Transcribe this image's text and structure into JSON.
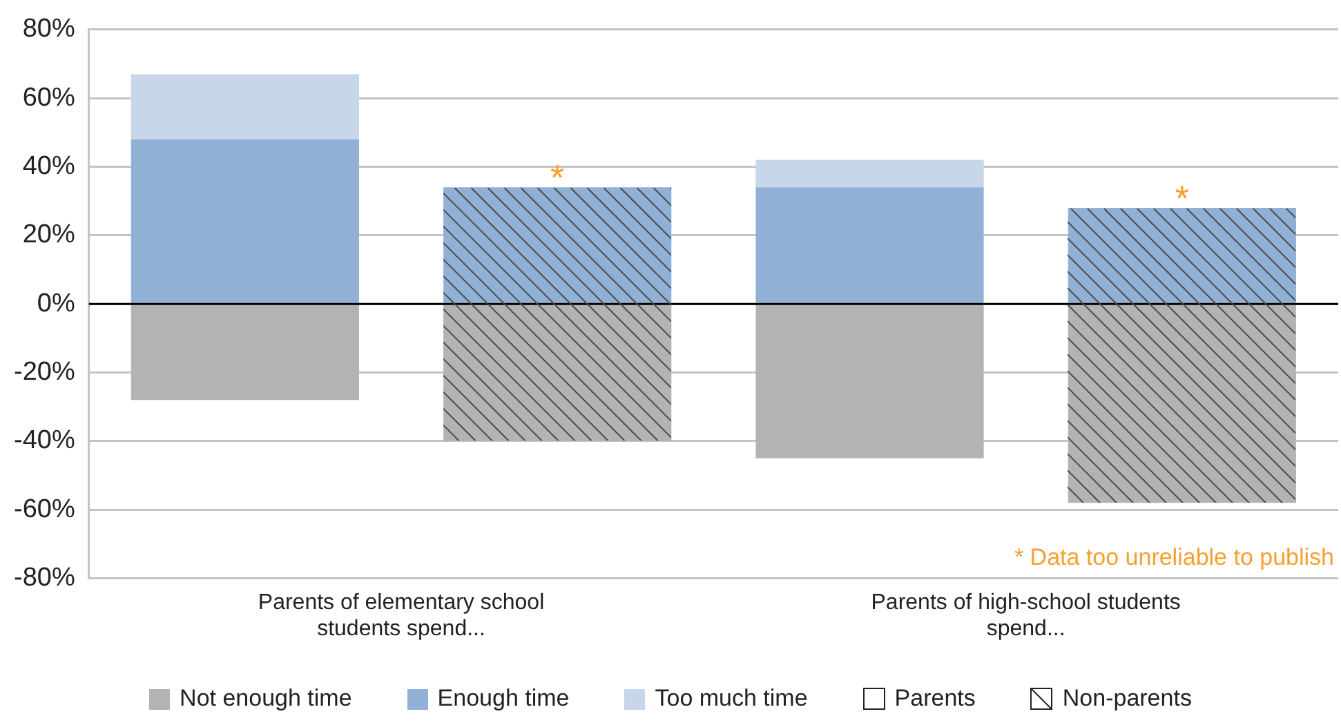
{
  "chart_data": {
    "type": "bar",
    "stacked": true,
    "categories": [
      null,
      null,
      null,
      null
    ],
    "series": [
      {
        "name": "Not enough time",
        "color": "#b2b3b5",
        "values": [
          -28,
          -40,
          -45,
          -58
        ]
      },
      {
        "name": "Enough time",
        "color": "#91b0d6",
        "values": [
          48,
          34,
          34,
          28
        ]
      },
      {
        "name": "Too much time",
        "color": "#c8d6e9",
        "values": [
          19,
          null,
          8,
          null
        ]
      }
    ],
    "ylim": [
      -80,
      80
    ],
    "yticks": [
      {
        "value": -80,
        "label": "-80%"
      },
      {
        "value": -60,
        "label": "-60%"
      },
      {
        "value": -40,
        "label": "-40%"
      },
      {
        "value": -20,
        "label": "-20%"
      },
      {
        "value": 0,
        "label": "0%"
      },
      {
        "value": 20,
        "label": "20%"
      },
      {
        "value": 40,
        "label": "40%"
      },
      {
        "value": 60,
        "label": "60%"
      },
      {
        "value": 80,
        "label": "80%"
      }
    ],
    "grid": "y",
    "legend": "bottom",
    "ref_lines": [
      {
        "axis": "y",
        "value": 0,
        "color": "#000000"
      }
    ],
    "annotations": [
      {
        "text": "*",
        "y": 34
      },
      {
        "text": "*",
        "y": 28
      },
      "Parents of elementary school students spend...",
      "Parents of high-school students spend...",
      "* Data too unreliable to publish",
      "Parents",
      "Non-parents"
    ]
  }
}
